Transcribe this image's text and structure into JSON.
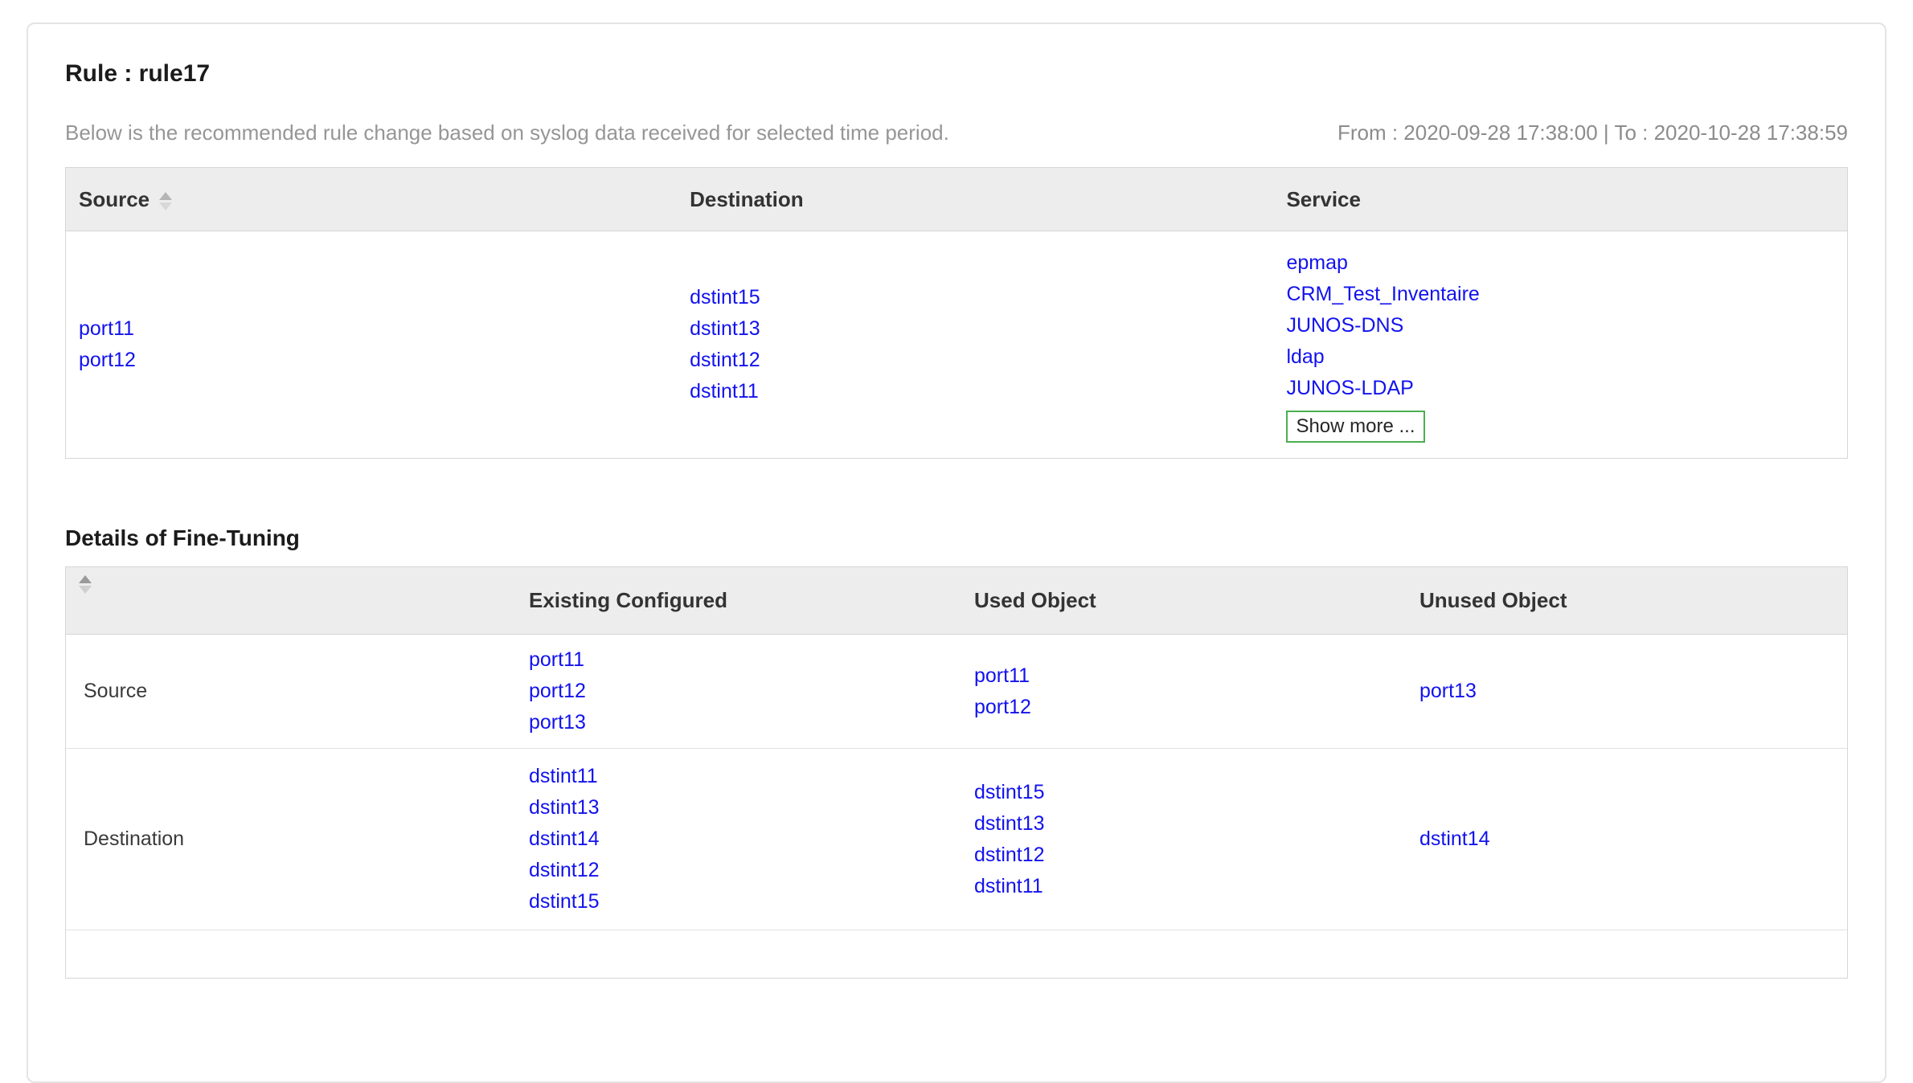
{
  "panel": {
    "title": "Rule : rule17",
    "subtitle": "Below is the recommended rule change based on syslog data received for selected time period.",
    "date_range": "From : 2020-09-28 17:38:00 | To : 2020-10-28 17:38:59"
  },
  "recommended_table": {
    "columns": [
      "Source",
      "Destination",
      "Service"
    ],
    "source_objects": [
      "port11",
      "port12"
    ],
    "destination_objects": [
      "dstint15",
      "dstint13",
      "dstint12",
      "dstint11"
    ],
    "service_objects": [
      "epmap",
      "CRM_Test_Inventaire",
      "JUNOS-DNS",
      "ldap",
      "JUNOS-LDAP"
    ],
    "show_more_label": "Show more ..."
  },
  "fine_tuning": {
    "heading": "Details of Fine-Tuning",
    "columns": [
      "Existing Configured",
      "Used Object",
      "Unused Object"
    ],
    "rows": [
      {
        "label": "Source",
        "existing_configured": [
          "port11",
          "port12",
          "port13"
        ],
        "used_object": [
          "port11",
          "port12"
        ],
        "unused_object": [
          "port13"
        ]
      },
      {
        "label": "Destination",
        "existing_configured": [
          "dstint11",
          "dstint13",
          "dstint14",
          "dstint12",
          "dstint15"
        ],
        "used_object": [
          "dstint15",
          "dstint13",
          "dstint12",
          "dstint11"
        ],
        "unused_object": [
          "dstint14"
        ]
      }
    ]
  },
  "colors": {
    "link_blue": "#1212ee",
    "show_more_border_green": "#4caf50",
    "header_bg": "#ededed",
    "panel_border": "#e4e4e4"
  }
}
